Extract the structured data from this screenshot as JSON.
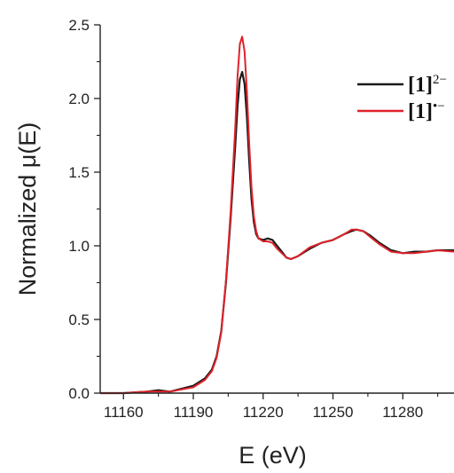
{
  "chart_data": {
    "type": "line",
    "title": "",
    "xlabel": "E (eV)",
    "ylabel": "Normalized μ(E)",
    "xlim": [
      11150,
      11302
    ],
    "ylim": [
      0,
      2.5
    ],
    "xticks": [
      11160,
      11190,
      11220,
      11250,
      11280
    ],
    "yticks": [
      0.0,
      0.5,
      1.0,
      1.5,
      2.0,
      2.5
    ],
    "xtick_labels": [
      "11160",
      "11190",
      "11220",
      "11250",
      "11280"
    ],
    "ytick_labels": [
      "0.0",
      "0.5",
      "1.0",
      "1.5",
      "2.0",
      "2.5"
    ],
    "grid": false,
    "legend_position": "top-right",
    "series": [
      {
        "name": "[1]2−",
        "legend_main": "[1]",
        "legend_sup": "2−",
        "color": "#1a1a1a",
        "x": [
          11150,
          11160,
          11170,
          11175,
          11180,
          11190,
          11195,
          11198,
          11200,
          11202,
          11204,
          11206,
          11208,
          11209,
          11210,
          11211,
          11212,
          11213,
          11214,
          11215,
          11216,
          11217,
          11218,
          11220,
          11222,
          11224,
          11226,
          11228,
          11230,
          11232,
          11235,
          11240,
          11245,
          11250,
          11255,
          11258,
          11260,
          11263,
          11266,
          11270,
          11275,
          11280,
          11285,
          11290,
          11295,
          11302
        ],
        "y": [
          0.0,
          0.0,
          0.01,
          0.02,
          0.01,
          0.05,
          0.1,
          0.16,
          0.25,
          0.42,
          0.75,
          1.18,
          1.68,
          1.95,
          2.13,
          2.18,
          2.1,
          1.88,
          1.58,
          1.32,
          1.16,
          1.08,
          1.05,
          1.04,
          1.05,
          1.04,
          1.0,
          0.96,
          0.92,
          0.91,
          0.93,
          0.98,
          1.02,
          1.04,
          1.08,
          1.1,
          1.11,
          1.1,
          1.07,
          1.02,
          0.97,
          0.95,
          0.96,
          0.96,
          0.97,
          0.97
        ]
      },
      {
        "name": "[1]•−",
        "legend_main": "[1]",
        "legend_sup": "•−",
        "color": "#e0222a",
        "x": [
          11150,
          11160,
          11170,
          11175,
          11180,
          11190,
          11195,
          11198,
          11200,
          11202,
          11204,
          11206,
          11208,
          11209,
          11210,
          11211,
          11212,
          11213,
          11214,
          11215,
          11216,
          11217,
          11218,
          11220,
          11222,
          11224,
          11226,
          11228,
          11230,
          11232,
          11235,
          11240,
          11245,
          11250,
          11255,
          11258,
          11260,
          11263,
          11266,
          11270,
          11275,
          11280,
          11285,
          11290,
          11295,
          11302
        ],
        "y": [
          0.0,
          0.0,
          0.01,
          0.01,
          0.01,
          0.04,
          0.09,
          0.15,
          0.24,
          0.41,
          0.76,
          1.22,
          1.8,
          2.15,
          2.37,
          2.42,
          2.32,
          2.05,
          1.7,
          1.4,
          1.2,
          1.1,
          1.05,
          1.03,
          1.03,
          1.02,
          0.98,
          0.95,
          0.92,
          0.91,
          0.93,
          0.99,
          1.02,
          1.04,
          1.08,
          1.11,
          1.11,
          1.1,
          1.06,
          1.01,
          0.96,
          0.95,
          0.95,
          0.96,
          0.97,
          0.96
        ]
      }
    ]
  }
}
